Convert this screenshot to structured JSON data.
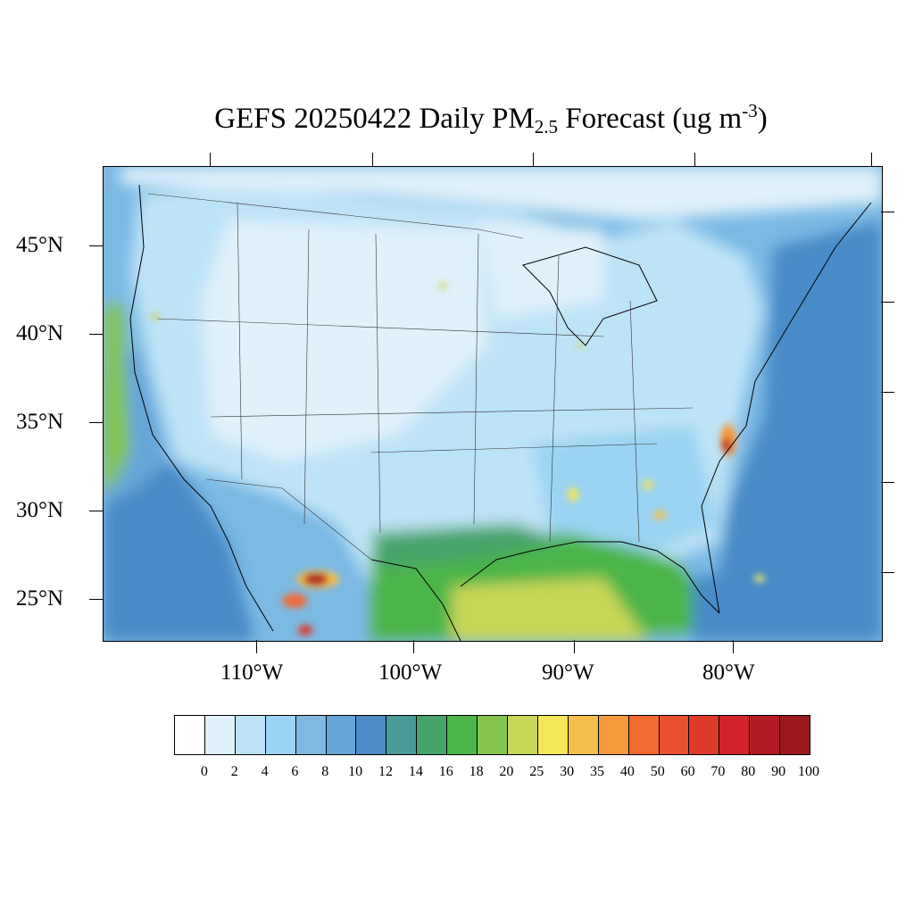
{
  "title": {
    "prefix": "GEFS 20250422 Daily PM",
    "subscript": "2.5",
    "middle": " Forecast (ug m",
    "superscript": "-3",
    "suffix": ")"
  },
  "map": {
    "lat_labels": [
      "45°N",
      "40°N",
      "35°N",
      "30°N",
      "25°N"
    ],
    "lon_labels": [
      "110°W",
      "100°W",
      "90°W",
      "80°W"
    ]
  },
  "legend": {
    "labels": [
      "0",
      "2",
      "4",
      "6",
      "8",
      "10",
      "12",
      "14",
      "16",
      "18",
      "20",
      "25",
      "30",
      "35",
      "40",
      "50",
      "60",
      "70",
      "80",
      "90",
      "100"
    ],
    "colors": [
      "#ffffff",
      "#dff1fb",
      "#bde3f6",
      "#9bd3f2",
      "#7fb9e2",
      "#66a5d8",
      "#4a8bc8",
      "#4a9a9a",
      "#46a46a",
      "#4bb54a",
      "#84c54d",
      "#c7d657",
      "#f5e65a",
      "#f6bf4a",
      "#f59a3c",
      "#f26b30",
      "#e9502d",
      "#de3a2a",
      "#d2222b",
      "#b31b22",
      "#9a1a1e"
    ]
  }
}
